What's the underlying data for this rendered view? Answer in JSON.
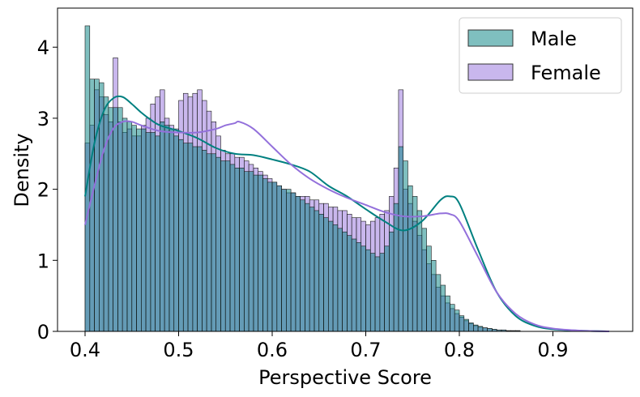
{
  "chart_data": {
    "type": "histogram",
    "xlabel": "Perspective Score",
    "ylabel": "Density",
    "xlim": [
      0.37,
      0.98
    ],
    "ylim": [
      0,
      4.55
    ],
    "x_ticks": [
      "0.4",
      "0.5",
      "0.6",
      "0.7",
      "0.8",
      "0.9"
    ],
    "x_tick_values": [
      0.4,
      0.5,
      0.6,
      0.7,
      0.8,
      0.9
    ],
    "y_ticks": [
      "0",
      "1",
      "2",
      "3",
      "4"
    ],
    "y_tick_values": [
      0,
      1,
      2,
      3,
      4
    ],
    "bin_start": 0.4,
    "bin_width": 0.005,
    "legend_placement": "top-right",
    "grid": false,
    "series": [
      {
        "name": "Male",
        "color": "#008080",
        "density": [
          4.3,
          3.55,
          3.55,
          3.5,
          3.3,
          3.15,
          3.15,
          3.15,
          3.0,
          2.95,
          2.9,
          2.85,
          2.85,
          2.8,
          2.8,
          2.75,
          2.95,
          2.9,
          2.85,
          2.75,
          2.7,
          2.65,
          2.65,
          2.6,
          2.6,
          2.55,
          2.5,
          2.5,
          2.45,
          2.4,
          2.4,
          2.35,
          2.3,
          2.3,
          2.25,
          2.25,
          2.2,
          2.2,
          2.15,
          2.1,
          2.1,
          2.05,
          2.0,
          2.0,
          1.95,
          1.9,
          1.85,
          1.8,
          1.75,
          1.7,
          1.65,
          1.6,
          1.55,
          1.5,
          1.45,
          1.4,
          1.35,
          1.3,
          1.25,
          1.2,
          1.15,
          1.1,
          1.05,
          1.1,
          1.2,
          1.4,
          1.8,
          2.6,
          2.4,
          2.05,
          1.9,
          1.7,
          1.45,
          1.2,
          1.0,
          0.8,
          0.65,
          0.5,
          0.38,
          0.3,
          0.22,
          0.17,
          0.12,
          0.09,
          0.07,
          0.05,
          0.04,
          0.03,
          0.02,
          0.02,
          0.01,
          0.01,
          0.01,
          0.0,
          0.0,
          0.0,
          0.0,
          0.0,
          0.0,
          0.0,
          0.0,
          0.0,
          0.0,
          0.0
        ],
        "kde_x": [
          0.4,
          0.41,
          0.42,
          0.43,
          0.44,
          0.45,
          0.46,
          0.47,
          0.48,
          0.5,
          0.52,
          0.54,
          0.56,
          0.58,
          0.6,
          0.62,
          0.64,
          0.66,
          0.68,
          0.7,
          0.72,
          0.74,
          0.76,
          0.78,
          0.79,
          0.8,
          0.82,
          0.84,
          0.86,
          0.88,
          0.9,
          0.93,
          0.96
        ],
        "kde_y": [
          1.9,
          2.65,
          3.1,
          3.28,
          3.3,
          3.2,
          3.08,
          2.98,
          2.9,
          2.82,
          2.72,
          2.58,
          2.5,
          2.48,
          2.42,
          2.35,
          2.25,
          2.05,
          1.9,
          1.72,
          1.55,
          1.42,
          1.55,
          1.85,
          1.9,
          1.8,
          1.15,
          0.55,
          0.22,
          0.08,
          0.03,
          0.01,
          0.0
        ]
      },
      {
        "name": "Female",
        "color": "#9370DB",
        "density": [
          2.65,
          2.9,
          3.4,
          3.3,
          3.05,
          2.95,
          3.85,
          2.95,
          2.8,
          2.85,
          2.75,
          2.75,
          2.9,
          3.0,
          3.2,
          3.3,
          3.4,
          3.0,
          2.9,
          2.85,
          3.25,
          3.35,
          3.3,
          3.35,
          3.4,
          3.25,
          3.1,
          2.95,
          2.75,
          2.55,
          2.5,
          2.5,
          2.45,
          2.45,
          2.4,
          2.35,
          2.3,
          2.25,
          2.2,
          2.15,
          2.1,
          2.05,
          2.0,
          1.95,
          1.95,
          1.9,
          1.9,
          1.9,
          1.85,
          1.85,
          1.8,
          1.8,
          1.75,
          1.75,
          1.7,
          1.7,
          1.65,
          1.6,
          1.6,
          1.55,
          1.5,
          1.55,
          1.6,
          1.65,
          1.7,
          1.9,
          2.3,
          3.4,
          2.0,
          1.8,
          1.55,
          1.35,
          1.15,
          0.95,
          0.8,
          0.62,
          0.5,
          0.4,
          0.32,
          0.25,
          0.2,
          0.15,
          0.11,
          0.08,
          0.06,
          0.05,
          0.04,
          0.03,
          0.02,
          0.02,
          0.01,
          0.01,
          0.01,
          0.0,
          0.0,
          0.0,
          0.0,
          0.0,
          0.0,
          0.0,
          0.0,
          0.0,
          0.0,
          0.0
        ],
        "kde_x": [
          0.4,
          0.41,
          0.42,
          0.43,
          0.44,
          0.45,
          0.46,
          0.48,
          0.5,
          0.52,
          0.54,
          0.55,
          0.56,
          0.565,
          0.58,
          0.6,
          0.62,
          0.64,
          0.66,
          0.68,
          0.7,
          0.72,
          0.74,
          0.76,
          0.78,
          0.79,
          0.8,
          0.82,
          0.84,
          0.86,
          0.88,
          0.9,
          0.93,
          0.96
        ],
        "kde_y": [
          1.5,
          2.05,
          2.55,
          2.85,
          2.95,
          2.95,
          2.9,
          2.82,
          2.8,
          2.8,
          2.85,
          2.9,
          2.93,
          2.95,
          2.85,
          2.6,
          2.35,
          2.15,
          2.0,
          1.88,
          1.78,
          1.68,
          1.62,
          1.62,
          1.66,
          1.65,
          1.55,
          1.05,
          0.55,
          0.25,
          0.1,
          0.04,
          0.01,
          0.0
        ]
      }
    ]
  }
}
